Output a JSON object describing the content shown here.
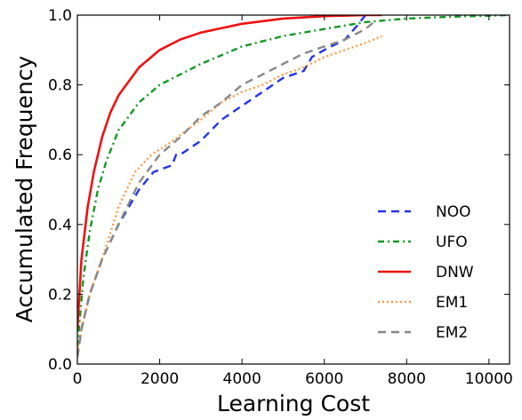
{
  "chart_data": {
    "type": "line",
    "xlabel": "Learning Cost",
    "ylabel": "Accumulated Frequency",
    "xlim": [
      0,
      10500
    ],
    "ylim": [
      0,
      1.0
    ],
    "x_ticks": [
      "0",
      "2000",
      "4000",
      "6000",
      "8000",
      "10000"
    ],
    "y_ticks": [
      "0.0",
      "0.2",
      "0.4",
      "0.6",
      "0.8",
      "1.0"
    ],
    "x_tick_values": [
      0,
      2000,
      4000,
      6000,
      8000,
      10000
    ],
    "y_tick_values": [
      0,
      0.2,
      0.4,
      0.6,
      0.8,
      1.0
    ],
    "grid": false,
    "legend_position": "bottom-right",
    "series": [
      {
        "name": "NOO",
        "color": "#2233ee",
        "style": "dashed",
        "points": [
          [
            0,
            0.02
          ],
          [
            100,
            0.1
          ],
          [
            300,
            0.2
          ],
          [
            600,
            0.3
          ],
          [
            1000,
            0.4
          ],
          [
            1500,
            0.5
          ],
          [
            1850,
            0.55
          ],
          [
            2300,
            0.57
          ],
          [
            2400,
            0.6
          ],
          [
            2500,
            0.6
          ],
          [
            3000,
            0.64
          ],
          [
            3500,
            0.7
          ],
          [
            4000,
            0.74
          ],
          [
            4500,
            0.78
          ],
          [
            5000,
            0.82
          ],
          [
            5500,
            0.84
          ],
          [
            5700,
            0.88
          ],
          [
            6000,
            0.9
          ],
          [
            6500,
            0.93
          ],
          [
            6800,
            0.97
          ],
          [
            7000,
            1.0
          ]
        ]
      },
      {
        "name": "UFO",
        "color": "#119922",
        "style": "dashdot",
        "points": [
          [
            0,
            0.05
          ],
          [
            150,
            0.25
          ],
          [
            300,
            0.38
          ],
          [
            500,
            0.5
          ],
          [
            700,
            0.58
          ],
          [
            1000,
            0.67
          ],
          [
            1500,
            0.75
          ],
          [
            2000,
            0.8
          ],
          [
            3000,
            0.86
          ],
          [
            4000,
            0.91
          ],
          [
            5000,
            0.94
          ],
          [
            6000,
            0.96
          ],
          [
            7000,
            0.98
          ],
          [
            8000,
            0.99
          ],
          [
            9000,
            0.995
          ],
          [
            10500,
            1.0
          ]
        ]
      },
      {
        "name": "DNW",
        "color": "#ee1111",
        "style": "solid",
        "points": [
          [
            0,
            0.1
          ],
          [
            100,
            0.3
          ],
          [
            250,
            0.45
          ],
          [
            400,
            0.55
          ],
          [
            600,
            0.65
          ],
          [
            800,
            0.72
          ],
          [
            1000,
            0.77
          ],
          [
            1500,
            0.85
          ],
          [
            2000,
            0.9
          ],
          [
            2500,
            0.93
          ],
          [
            3000,
            0.95
          ],
          [
            4000,
            0.975
          ],
          [
            5000,
            0.99
          ],
          [
            6000,
            0.997
          ],
          [
            7000,
            1.0
          ],
          [
            7400,
            1.0
          ]
        ]
      },
      {
        "name": "EM1",
        "color": "#ff9944",
        "style": "dotted",
        "points": [
          [
            0,
            0.03
          ],
          [
            100,
            0.1
          ],
          [
            300,
            0.2
          ],
          [
            600,
            0.3
          ],
          [
            1000,
            0.45
          ],
          [
            1400,
            0.55
          ],
          [
            1800,
            0.6
          ],
          [
            2200,
            0.63
          ],
          [
            3000,
            0.7
          ],
          [
            3500,
            0.75
          ],
          [
            4000,
            0.78
          ],
          [
            4500,
            0.8
          ],
          [
            5000,
            0.83
          ],
          [
            5500,
            0.85
          ],
          [
            6000,
            0.88
          ],
          [
            6500,
            0.9
          ],
          [
            7000,
            0.92
          ],
          [
            7400,
            0.94
          ]
        ]
      },
      {
        "name": "EM2",
        "color": "#888888",
        "style": "dashed",
        "points": [
          [
            0,
            0.02
          ],
          [
            100,
            0.1
          ],
          [
            300,
            0.2
          ],
          [
            600,
            0.3
          ],
          [
            1000,
            0.4
          ],
          [
            1500,
            0.52
          ],
          [
            2000,
            0.6
          ],
          [
            2500,
            0.65
          ],
          [
            3000,
            0.71
          ],
          [
            3500,
            0.75
          ],
          [
            4000,
            0.8
          ],
          [
            4500,
            0.83
          ],
          [
            5000,
            0.86
          ],
          [
            5500,
            0.89
          ],
          [
            6000,
            0.91
          ],
          [
            6500,
            0.93
          ],
          [
            7000,
            0.96
          ],
          [
            7200,
            0.98
          ]
        ]
      }
    ]
  }
}
